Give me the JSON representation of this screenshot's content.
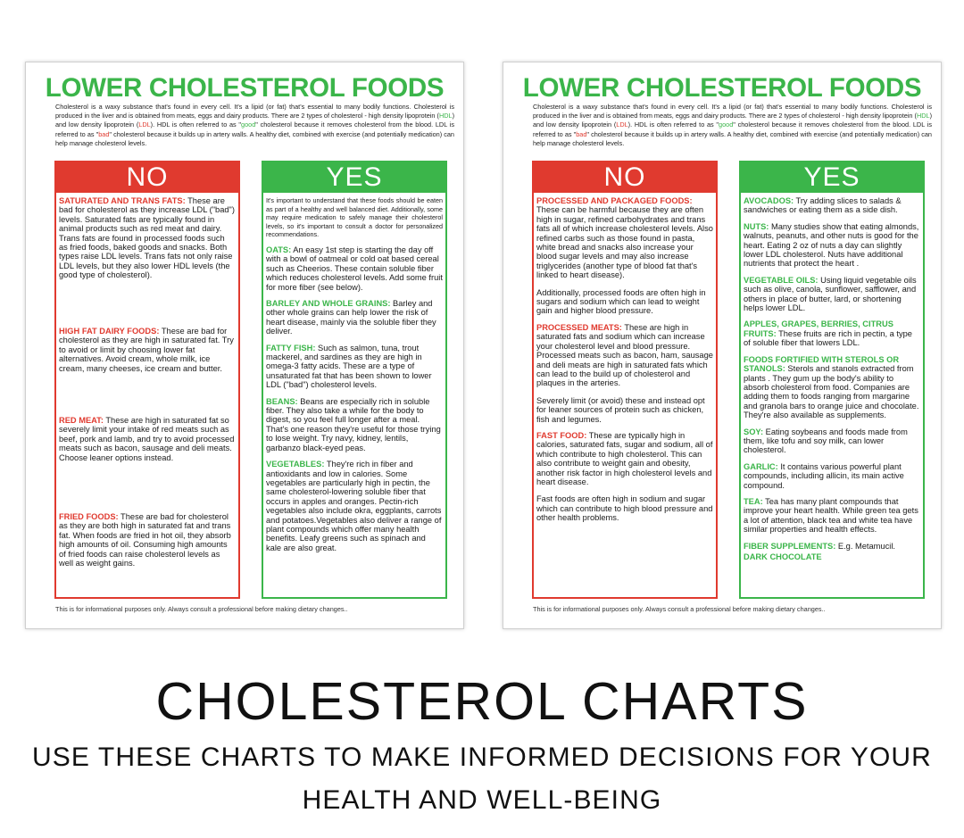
{
  "sheet_a": {
    "title": "LOWER CHOLESTEROL FOODS",
    "intro": {
      "p1": "Cholesterol is a waxy substance that's found in every cell. It's a lipid (or fat) that's essential to many bodily functions.  Cholesterol is produced in the liver and is obtained from meats, eggs and dairy products. There are 2 types of cholesterol - high density lipoprotein (",
      "hdl": "HDL",
      "p2": ") and low density lipoprotein (",
      "ldl": "LDL",
      "p3": ").  HDL is often referred to as \"",
      "good": "good",
      "p4": "\" cholesterol because it removes cholesterol from the blood. LDL is referred to as \"",
      "bad": "bad",
      "p5": "\" cholesterol because it builds up in artery walls. A healthy diet, combined with exercise (and potentially medication) can help manage cholesterol levels."
    },
    "no_heading": "NO",
    "yes_heading": "YES",
    "no_items": [
      {
        "key": "SATURATED AND TRANS FATS:",
        "text": " These are bad for cholesterol as they increase LDL (\"bad\") levels. Saturated fats are typically found in animal products such as red meat and dairy. Trans fats are found in processed foods such as fried foods, baked goods and snacks. Both types raise LDL levels. Trans fats not only raise LDL levels, but they also lower HDL levels (the good type of cholesterol)."
      },
      {
        "key": "HIGH FAT DAIRY FOODS:",
        "text": " These are bad for cholesterol as they are high in saturated fat.  Try to avoid or limit by choosing lower fat alternatives.  Avoid cream, whole milk, ice cream, many cheeses, ice cream and butter."
      },
      {
        "key": "RED MEAT:",
        "text": " These are high in saturated fat so severely limit your intake of red meats such as beef, pork and lamb, and try to avoid processed meats such as bacon, sausage and deli meats.  Choose leaner options instead."
      },
      {
        "key": "FRIED FOODS:",
        "text": " These are bad for cholesterol as they are both high in saturated fat and trans fat.  When foods are fried in hot oil, they absorb high amounts of oil. Consuming high amounts of fried foods can raise cholesterol levels as well as weight gains."
      }
    ],
    "yes_note": "It's important to understand that these foods should be eaten as part of a healthy and well balanced diet. Additionally, some may require medication to safely manage their cholesterol levels, so it's important to consult a doctor for personalized recommendations.",
    "yes_items": [
      {
        "key": "OATS:",
        "text": " An easy 1st step is starting the day off with a bowl of oatmeal or cold oat based cereal such as Cheerios.  These contain soluble fiber which reduces cholesterol levels. Add some fruit for more fiber (see below)."
      },
      {
        "key": "BARLEY AND WHOLE GRAINS:",
        "text": " Barley and other whole grains can help lower the risk of heart disease, mainly via the soluble fiber they deliver."
      },
      {
        "key": "FATTY FISH:",
        "text": " Such as salmon, tuna, trout mackerel, and sardines as they are high in omega-3 fatty acids.  These are a type of unsaturated fat that has been shown to lower LDL (\"bad\") cholesterol levels."
      },
      {
        "key": "BEANS:",
        "text": " Beans are especially rich in soluble fiber. They also take a while for the body to digest, so you feel full longer after a meal. That's one reason they're useful for those trying to lose weight.  Try navy, kidney, lentils, garbanzo black-eyed peas."
      },
      {
        "key": "VEGETABLES:",
        "text": " They're rich in fiber and antioxidants and low in calories. Some vegetables are particularly high in pectin, the same cholesterol-lowering soluble fiber that occurs in apples and oranges. Pectin-rich vegetables also include okra, eggplants, carrots and potatoes.Vegetables also deliver a range of plant compounds which offer many health benefits. Leafy greens such as spinach and kale are also great."
      }
    ],
    "footer": "This is for informational purposes only. Always consult a professional before making dietary changes.."
  },
  "sheet_b": {
    "title": "LOWER CHOLESTEROL FOODS",
    "no_heading": "NO",
    "yes_heading": "YES",
    "no_items": [
      {
        "key": "PROCESSED AND PACKAGED FOODS:",
        "text": " These can be harmful because they are often high in sugar, refined carbohydrates and trans fats all of which increase cholesterol levels. Also refined carbs such as those found in pasta, white bread and snacks also increase your blood sugar levels and may also increase triglycerides (another type of blood fat that's linked to heart disease).",
        "para": "Additionally, processed foods are often high in sugars and sodium which can lead to weight gain and higher blood pressure."
      },
      {
        "key": "PROCESSED MEATS:",
        "text": " These are high in saturated fats and sodium which can increase your cholesterol level and blood pressure. Processed meats such as bacon, ham, sausage and deli meats are high in saturated fats which can lead to the build up of cholesterol and plaques in the arteries.",
        "para": "Severely limit (or avoid) these and instead opt for leaner sources of protein  such as chicken, fish and legumes."
      },
      {
        "key": "FAST FOOD:",
        "text": " These are typically high in calories, saturated fats, sugar and sodium, all of which contribute to high cholesterol. This can also contribute to weight gain and obesity, another risk factor in high cholesterol levels and heart disease.",
        "para": "Fast foods are often high in sodium and sugar which can contribute to high blood pressure and other health problems."
      }
    ],
    "yes_items": [
      {
        "key": "AVOCADOS:",
        "text": " Try adding slices to salads & sandwiches or eating them as a side dish."
      },
      {
        "key": "NUTS:",
        "text": " Many studies show that eating almonds, walnuts, peanuts, and other nuts is good for the heart. Eating 2 oz of nuts a day can slightly lower LDL cholesterol. Nuts have additional nutrients that protect the heart ."
      },
      {
        "key": "VEGETABLE OILS:",
        "text": " Using liquid vegetable oils such as olive, canola, sunflower, safflower, and others in place of butter, lard, or shortening helps lower LDL."
      },
      {
        "key": "APPLES, GRAPES, BERRIES, CITRUS FRUITS:",
        "text": " These fruits are rich in pectin, a type of soluble fiber that lowers LDL."
      },
      {
        "key": "FOODS FORTIFIED WITH STEROLS OR STANOLS:",
        "text": " Sterols and stanols extracted from plants . They gum up the body's ability to absorb cholesterol from food. Companies are adding them to foods ranging from margarine and granola bars to orange juice and chocolate. They're also available as supplements."
      },
      {
        "key": "SOY:",
        "text": " Eating soybeans and foods made from them, like tofu and soy milk, can lower cholesterol."
      },
      {
        "key": "GARLIC:",
        "text": " It contains various powerful plant compounds, including allicin, its main active compound."
      },
      {
        "key": "TEA:",
        "text": " Tea has many plant compounds that improve your heart health. While green tea gets a lot of attention, black tea and white tea have similar properties and health effects."
      },
      {
        "key": "FIBER SUPPLEMENTS:",
        "text": " E.g. Metamucil."
      },
      {
        "key": "DARK CHOCOLATE",
        "text": ""
      }
    ],
    "footer": "This is for informational purposes only. Always consult a professional before making dietary changes.."
  },
  "banner": {
    "title": "CHOLESTEROL CHARTS",
    "subtitle_line1": "USE THESE CHARTS TO MAKE INFORMED DECISIONS FOR YOUR",
    "subtitle_line2": "HEALTH AND WELL-BEING"
  },
  "colors": {
    "green": "#3bb54a",
    "red": "#e03a2f"
  }
}
